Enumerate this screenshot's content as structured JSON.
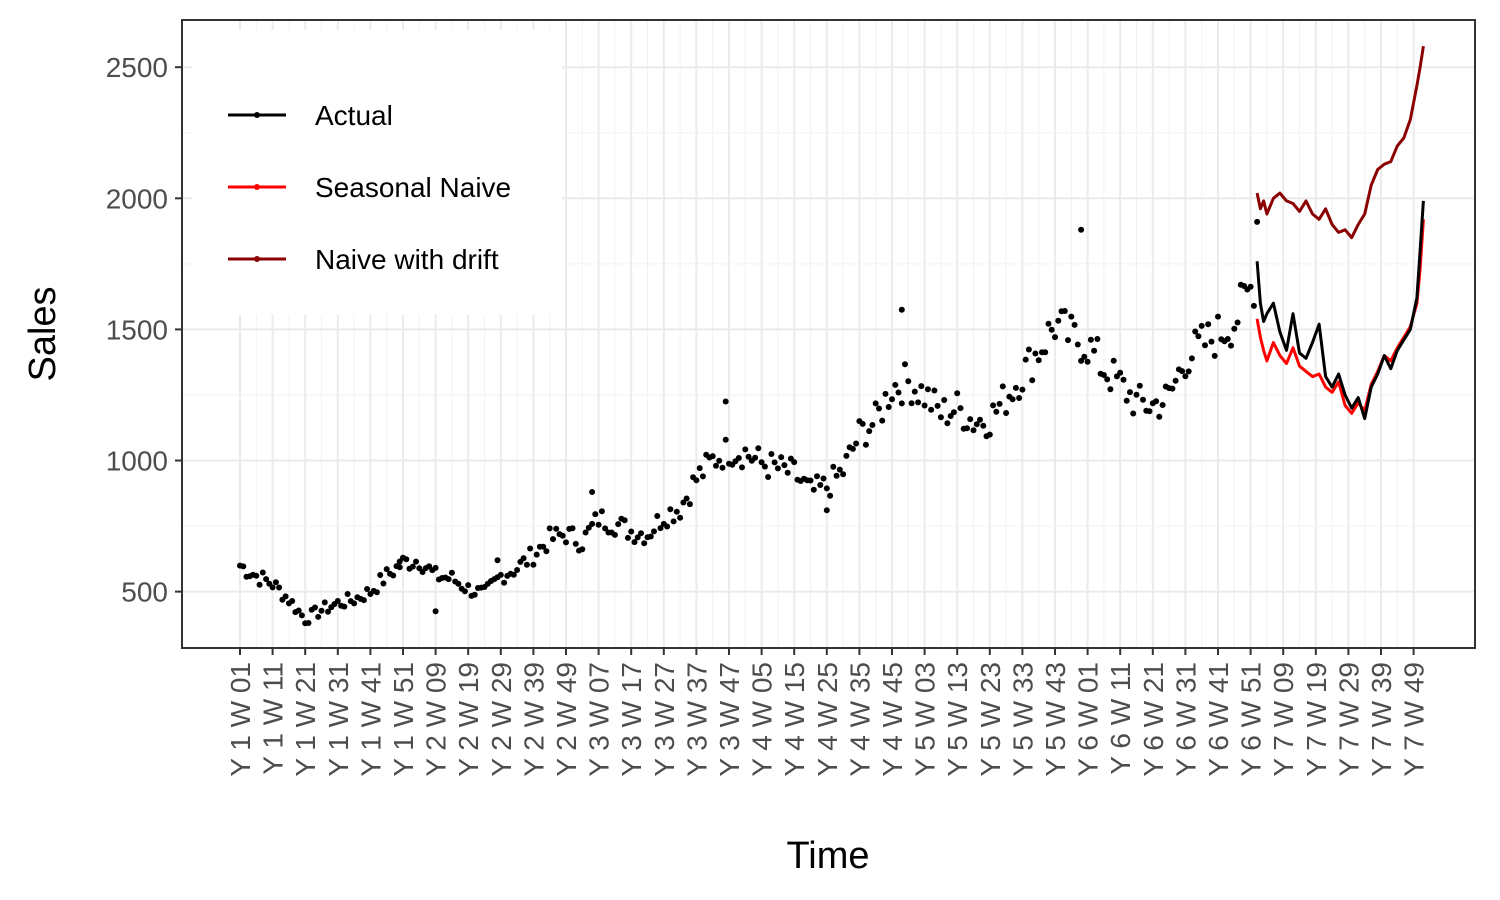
{
  "chart_data": {
    "type": "line",
    "xlabel": "Time",
    "ylabel": "Sales",
    "ylim": [
      285,
      2680
    ],
    "y_ticks": [
      500,
      1000,
      1500,
      2000,
      2500
    ],
    "x_tick_labels": [
      "Y 1 W 01",
      "Y 1 W 11",
      "Y 1 W 21",
      "Y 1 W 31",
      "Y 1 W 41",
      "Y 1 W 51",
      "Y 2 W 09",
      "Y 2 W 19",
      "Y 2 W 29",
      "Y 2 W 39",
      "Y 2 W 49",
      "Y 3 W 07",
      "Y 3 W 17",
      "Y 3 W 27",
      "Y 3 W 37",
      "Y 3 W 47",
      "Y 4 W 05",
      "Y 4 W 15",
      "Y 4 W 25",
      "Y 4 W 35",
      "Y 4 W 45",
      "Y 5 W 03",
      "Y 5 W 13",
      "Y 5 W 23",
      "Y 5 W 33",
      "Y 5 W 43",
      "Y 6 W 01",
      "Y 6 W 11",
      "Y 6 W 21",
      "Y 6 W 31",
      "Y 6 W 41",
      "Y 6 W 51",
      "Y 7 W 09",
      "Y 7 W 19",
      "Y 7 W 29",
      "Y 7 W 39",
      "Y 7 W 49"
    ],
    "grid": true,
    "legend_position": "top-left",
    "legend": [
      {
        "name": "Actual",
        "color": "#000000"
      },
      {
        "name": "Seasonal Naive",
        "color": "#ff0000"
      },
      {
        "name": "Naive with drift",
        "color": "#8b0000"
      }
    ],
    "history_note": "Actual values for Y 1 W 01 through Y 6 W 52 shown as points; values anchored at tick weeks (index = week number from Y 1 W 01)",
    "actual_history_anchors": [
      {
        "x": 1,
        "y": 600
      },
      {
        "x": 6,
        "y": 560
      },
      {
        "x": 11,
        "y": 530
      },
      {
        "x": 16,
        "y": 470
      },
      {
        "x": 21,
        "y": 395
      },
      {
        "x": 26,
        "y": 430
      },
      {
        "x": 31,
        "y": 455
      },
      {
        "x": 36,
        "y": 470
      },
      {
        "x": 41,
        "y": 500
      },
      {
        "x": 46,
        "y": 560
      },
      {
        "x": 51,
        "y": 610
      },
      {
        "x": 56,
        "y": 620
      },
      {
        "x": 61,
        "y": 560
      },
      {
        "x": 66,
        "y": 550
      },
      {
        "x": 71,
        "y": 510
      },
      {
        "x": 76,
        "y": 490
      },
      {
        "x": 81,
        "y": 560
      },
      {
        "x": 86,
        "y": 590
      },
      {
        "x": 91,
        "y": 640
      },
      {
        "x": 96,
        "y": 700
      },
      {
        "x": 101,
        "y": 720
      },
      {
        "x": 106,
        "y": 690
      },
      {
        "x": 111,
        "y": 780
      },
      {
        "x": 116,
        "y": 760
      },
      {
        "x": 121,
        "y": 730
      },
      {
        "x": 126,
        "y": 720
      },
      {
        "x": 131,
        "y": 790
      },
      {
        "x": 136,
        "y": 820
      },
      {
        "x": 141,
        "y": 930
      },
      {
        "x": 146,
        "y": 1000
      },
      {
        "x": 151,
        "y": 1040
      },
      {
        "x": 156,
        "y": 1030
      },
      {
        "x": 161,
        "y": 990
      },
      {
        "x": 166,
        "y": 970
      },
      {
        "x": 171,
        "y": 950
      },
      {
        "x": 176,
        "y": 880
      },
      {
        "x": 181,
        "y": 900
      },
      {
        "x": 186,
        "y": 960
      },
      {
        "x": 191,
        "y": 1100
      },
      {
        "x": 196,
        "y": 1150
      },
      {
        "x": 201,
        "y": 1280
      },
      {
        "x": 206,
        "y": 1300
      },
      {
        "x": 211,
        "y": 1250
      },
      {
        "x": 216,
        "y": 1180
      },
      {
        "x": 221,
        "y": 1200
      },
      {
        "x": 226,
        "y": 1150
      },
      {
        "x": 231,
        "y": 1160
      },
      {
        "x": 236,
        "y": 1240
      },
      {
        "x": 241,
        "y": 1330
      },
      {
        "x": 246,
        "y": 1420
      },
      {
        "x": 251,
        "y": 1520
      },
      {
        "x": 256,
        "y": 1470
      },
      {
        "x": 261,
        "y": 1440
      },
      {
        "x": 266,
        "y": 1350
      },
      {
        "x": 271,
        "y": 1290
      },
      {
        "x": 276,
        "y": 1220
      },
      {
        "x": 281,
        "y": 1210
      },
      {
        "x": 286,
        "y": 1240
      },
      {
        "x": 291,
        "y": 1390
      },
      {
        "x": 296,
        "y": 1440
      },
      {
        "x": 301,
        "y": 1480
      },
      {
        "x": 306,
        "y": 1530
      },
      {
        "x": 312,
        "y": 1680
      }
    ],
    "actual_history_outliers": [
      {
        "x": 50,
        "y": 615
      },
      {
        "x": 61,
        "y": 425
      },
      {
        "x": 80,
        "y": 620
      },
      {
        "x": 109,
        "y": 880
      },
      {
        "x": 150,
        "y": 1225
      },
      {
        "x": 181,
        "y": 810
      },
      {
        "x": 204,
        "y": 1575
      },
      {
        "x": 259,
        "y": 1880
      },
      {
        "x": 313,
        "y": 1910
      }
    ],
    "forecast_x": [
      313,
      318,
      323,
      328,
      333,
      338,
      343,
      348,
      353,
      358,
      363
    ],
    "series": [
      {
        "name": "Actual",
        "color": "#000000",
        "x": [
          313,
          314,
          315,
          316,
          318,
          320,
          322,
          324,
          326,
          328,
          330,
          332,
          334,
          336,
          338,
          340,
          342,
          344,
          346,
          348,
          350,
          352,
          354,
          356,
          358,
          360,
          362,
          363,
          364
        ],
        "y": [
          1760,
          1600,
          1530,
          1560,
          1600,
          1490,
          1420,
          1560,
          1410,
          1390,
          1450,
          1520,
          1320,
          1280,
          1330,
          1250,
          1200,
          1240,
          1160,
          1280,
          1330,
          1400,
          1350,
          1420,
          1460,
          1500,
          1620,
          1800,
          1990
        ]
      },
      {
        "name": "Seasonal Naive",
        "color": "#ff0000",
        "x": [
          313,
          314,
          315,
          316,
          318,
          320,
          322,
          324,
          326,
          328,
          330,
          332,
          334,
          336,
          338,
          340,
          342,
          344,
          346,
          348,
          350,
          352,
          354,
          356,
          358,
          360,
          362,
          363,
          364
        ],
        "y": [
          1540,
          1470,
          1420,
          1380,
          1450,
          1400,
          1370,
          1430,
          1360,
          1340,
          1320,
          1330,
          1280,
          1260,
          1300,
          1210,
          1180,
          1220,
          1190,
          1290,
          1340,
          1400,
          1380,
          1430,
          1470,
          1510,
          1600,
          1730,
          1920
        ]
      },
      {
        "name": "Naive with drift",
        "color": "#8b0000",
        "x": [
          313,
          314,
          315,
          316,
          318,
          320,
          322,
          324,
          326,
          328,
          330,
          332,
          334,
          336,
          338,
          340,
          342,
          344,
          346,
          348,
          350,
          352,
          354,
          356,
          358,
          360,
          362,
          363,
          364
        ],
        "y": [
          2020,
          1960,
          1990,
          1940,
          2000,
          2020,
          1990,
          1980,
          1950,
          1990,
          1940,
          1920,
          1960,
          1900,
          1870,
          1880,
          1850,
          1900,
          1940,
          2050,
          2110,
          2130,
          2140,
          2200,
          2230,
          2300,
          2430,
          2500,
          2580
        ]
      }
    ]
  }
}
